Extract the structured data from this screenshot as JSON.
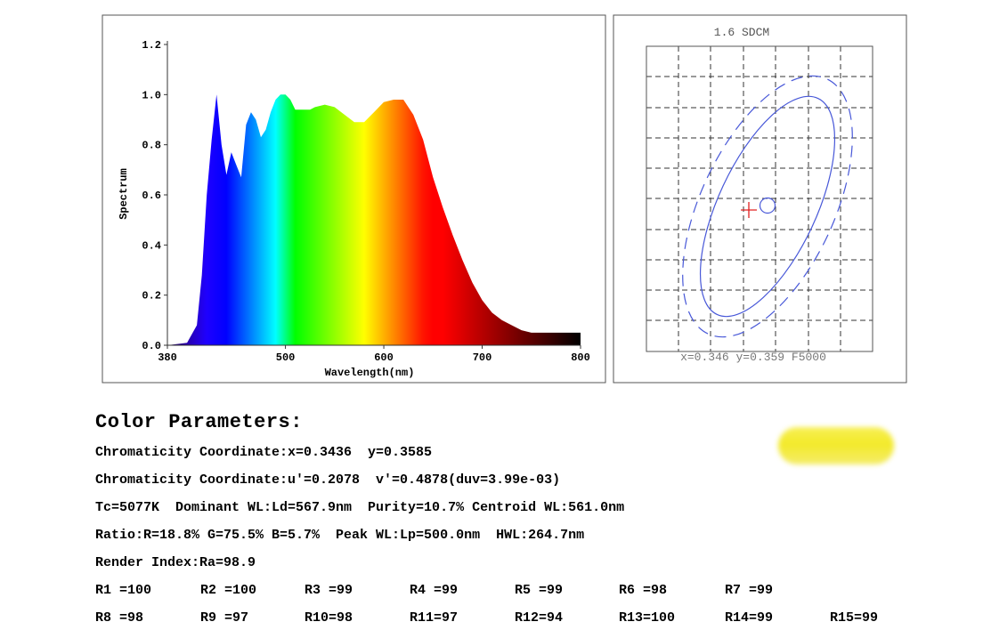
{
  "chart_data": [
    {
      "type": "area",
      "title": "",
      "xlabel": "Wavelength(nm)",
      "ylabel": "Spectrum",
      "xlim": [
        380,
        800
      ],
      "ylim": [
        0,
        1.2
      ],
      "x_ticks": [
        380,
        500,
        600,
        700,
        800
      ],
      "y_ticks": [
        "0.0",
        "0.2",
        "0.4",
        "0.6",
        "0.8",
        "1.0",
        "1.2"
      ],
      "fill": "wavelength-rainbow",
      "series": [
        {
          "x": [
            380,
            400,
            410,
            415,
            420,
            425,
            430,
            435,
            440,
            445,
            450,
            455,
            460,
            465,
            470,
            475,
            480,
            485,
            490,
            495,
            500,
            505,
            510,
            515,
            520,
            525,
            530,
            540,
            550,
            560,
            570,
            580,
            590,
            600,
            610,
            620,
            630,
            640,
            650,
            660,
            670,
            680,
            690,
            700,
            710,
            720,
            730,
            740,
            750,
            760,
            770,
            780,
            790,
            800
          ],
          "y": [
            0.0,
            0.01,
            0.08,
            0.28,
            0.6,
            0.82,
            1.0,
            0.8,
            0.68,
            0.77,
            0.72,
            0.67,
            0.88,
            0.93,
            0.9,
            0.83,
            0.86,
            0.93,
            0.98,
            1.0,
            1.0,
            0.98,
            0.94,
            0.94,
            0.94,
            0.94,
            0.95,
            0.96,
            0.95,
            0.92,
            0.89,
            0.89,
            0.93,
            0.97,
            0.98,
            0.98,
            0.92,
            0.82,
            0.67,
            0.55,
            0.44,
            0.34,
            0.25,
            0.18,
            0.13,
            0.1,
            0.08,
            0.06,
            0.05,
            0.05,
            0.05,
            0.05,
            0.05,
            0.05
          ]
        }
      ]
    },
    {
      "type": "scatter",
      "title": "1.6 SDCM",
      "footer": "x=0.346 y=0.359 F5000",
      "grid": true,
      "points": [
        {
          "name": "measured",
          "marker": "plus",
          "color": "#e02020",
          "x": 0.3436,
          "y": 0.3585
        },
        {
          "name": "reference",
          "marker": "circle",
          "color": "#4858d8",
          "x": 0.346,
          "y": 0.359
        }
      ]
    }
  ],
  "params": {
    "title": "Color Parameters:",
    "lines": [
      "Chromaticity Coordinate:x=0.3436  y=0.3585",
      "Chromaticity Coordinate:u'=0.2078  v'=0.4878(duv=3.99e-03)",
      "Tc=5077K  Dominant WL:Ld=567.9nm  Purity=10.7% Centroid WL:561.0nm",
      "Ratio:R=18.8% G=75.5% B=5.7%  Peak WL:Lp=500.0nm  HWL:264.7nm",
      "Render Index:Ra=98.9"
    ],
    "render_row1": [
      "R1 =100",
      "R2 =100",
      "R3 =99",
      "R4 =99",
      "R5 =99",
      "R6 =98",
      "R7 =99"
    ],
    "render_row2": [
      "R8 =98",
      "R9 =97",
      "R10=98",
      "R11=97",
      "R12=94",
      "R13=100",
      "R14=99",
      "R15=99"
    ]
  },
  "swatch_color": "#f3ea2a"
}
